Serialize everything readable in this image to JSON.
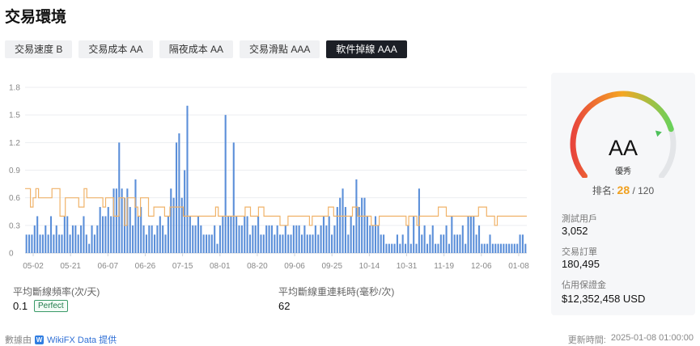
{
  "page": {
    "title": "交易環境"
  },
  "tabs": [
    {
      "label": "交易速度 B",
      "active": false
    },
    {
      "label": "交易成本 AA",
      "active": false
    },
    {
      "label": "隔夜成本 AA",
      "active": false
    },
    {
      "label": "交易滑點 AAA",
      "active": false
    },
    {
      "label": "軟件掉線 AAA",
      "active": true
    }
  ],
  "chart_data": {
    "type": "bar",
    "xlabel": "",
    "ylabel": "",
    "ylim": [
      0,
      1.8
    ],
    "yticks": [
      "0",
      "0.3",
      "0.6",
      "0.9",
      "1.2",
      "1.5",
      "1.8"
    ],
    "xticks": [
      "05-02",
      "05-21",
      "06-07",
      "06-26",
      "07-15",
      "08-01",
      "08-20",
      "09-06",
      "09-25",
      "10-14",
      "10-31",
      "11-19",
      "12-06",
      "01-08"
    ],
    "grid": true,
    "series": [
      {
        "type": "bar",
        "color": "#5b8fd9",
        "values": [
          0.2,
          0.2,
          0.2,
          0.3,
          0.4,
          0.2,
          0.2,
          0.3,
          0.2,
          0.4,
          0.2,
          0.3,
          0.2,
          0.2,
          0.4,
          0.4,
          0.2,
          0.3,
          0.3,
          0.2,
          0.3,
          0.4,
          0.2,
          0.1,
          0.3,
          0.2,
          0.3,
          0.5,
          0.4,
          0.4,
          0.5,
          0.4,
          0.7,
          0.7,
          1.2,
          0.7,
          0.6,
          0.7,
          0.5,
          0.3,
          0.8,
          0.4,
          0.5,
          0.3,
          0.2,
          0.3,
          0.3,
          0.2,
          0.3,
          0.4,
          0.3,
          0.2,
          0.4,
          0.7,
          0.6,
          1.2,
          1.3,
          0.6,
          0.9,
          1.6,
          0.4,
          0.3,
          0.3,
          0.4,
          0.3,
          0.2,
          0.2,
          0.2,
          0.2,
          0.3,
          0.1,
          0.3,
          0.4,
          1.5,
          0.4,
          0.4,
          1.2,
          0.4,
          0.3,
          0.3,
          0.4,
          0.4,
          0.2,
          0.3,
          0.3,
          0.4,
          0.2,
          0.2,
          0.3,
          0.3,
          0.3,
          0.2,
          0.3,
          0.2,
          0.2,
          0.3,
          0.2,
          0.2,
          0.3,
          0.3,
          0.3,
          0.2,
          0.3,
          0.2,
          0.2,
          0.2,
          0.3,
          0.2,
          0.3,
          0.4,
          0.3,
          0.4,
          0.2,
          0.3,
          0.5,
          0.6,
          0.7,
          0.5,
          0.2,
          0.4,
          0.3,
          0.8,
          0.5,
          0.6,
          0.6,
          0.4,
          0.3,
          0.3,
          0.4,
          0.3,
          0.2,
          0.2,
          0.1,
          0.1,
          0.1,
          0.1,
          0.2,
          0.1,
          0.2,
          0.1,
          0.3,
          0.1,
          0.4,
          0.1,
          0.7,
          0.2,
          0.3,
          0.1,
          0.2,
          0.3,
          0.1,
          0.1,
          0.2,
          0.2,
          0.3,
          0.1,
          0.4,
          0.2,
          0.2,
          0.2,
          0.3,
          0.1,
          0.4,
          0.4,
          0.4,
          0.2,
          0.3,
          0.1,
          0.1,
          0.1,
          0.2,
          0.1,
          0.1,
          0.1,
          0.1,
          0.1,
          0.1,
          0.1,
          0.1,
          0.1,
          0.1,
          0.2,
          0.2,
          0.1
        ]
      },
      {
        "type": "line",
        "color": "#f0b36a",
        "values": [
          0.7,
          0.7,
          0.5,
          0.6,
          0.7,
          0.6,
          0.6,
          0.6,
          0.6,
          0.6,
          0.7,
          0.7,
          0.7,
          0.4,
          0.4,
          0.6,
          0.6,
          0.6,
          0.6,
          0.6,
          0.5,
          0.5,
          0.7,
          0.6,
          0.6,
          0.6,
          0.6,
          0.6,
          0.6,
          0.5,
          0.6,
          0.6,
          0.6,
          0.4,
          0.4,
          0.6,
          0.6,
          0.3,
          0.6,
          0.6,
          0.6,
          0.5,
          0.4,
          0.6,
          0.6,
          0.6,
          0.4,
          0.4,
          0.5,
          0.5,
          0.5,
          0.5,
          0.4,
          0.4,
          0.5,
          0.5,
          0.5,
          0.5,
          0.5,
          0.4,
          0.4,
          0.4,
          0.4,
          0.4,
          0.4,
          0.4,
          0.4,
          0.4,
          0.4,
          0.4,
          0.4,
          0.5,
          0.4,
          0.4,
          0.4,
          0.4,
          0.4,
          0.4,
          0.4,
          0.4,
          0.4,
          0.4,
          0.5,
          0.5,
          0.4,
          0.4,
          0.4,
          0.5,
          0.5,
          0.4,
          0.4,
          0.4,
          0.4,
          0.4,
          0.4,
          0.3,
          0.3,
          0.3,
          0.4,
          0.4,
          0.4,
          0.4,
          0.4,
          0.4,
          0.4,
          0.4,
          0.3,
          0.4,
          0.4,
          0.4,
          0.4,
          0.4,
          0.4,
          0.5,
          0.5,
          0.4,
          0.4,
          0.4,
          0.4,
          0.4,
          0.4,
          0.4,
          0.5,
          0.5,
          0.4,
          0.4,
          0.4,
          0.4,
          0.4,
          0.3,
          0.3,
          0.3,
          0.4,
          0.4,
          0.4,
          0.4,
          0.4,
          0.4,
          0.4,
          0.4,
          0.4,
          0.4,
          0.3,
          0.4,
          0.4,
          0.4,
          0.3,
          0.4,
          0.4,
          0.4,
          0.4,
          0.4,
          0.4,
          0.4,
          0.5,
          0.5,
          0.5,
          0.4,
          0.4,
          0.4,
          0.4,
          0.4,
          0.4,
          0.4,
          0.4,
          0.4,
          0.4,
          0.4,
          0.4,
          0.5,
          0.5,
          0.5,
          0.4,
          0.4,
          0.4,
          0.3,
          0.4,
          0.4,
          0.4,
          0.4,
          0.4,
          0.4,
          0.4,
          0.4,
          0.4,
          0.4,
          0.4
        ]
      }
    ]
  },
  "metrics": {
    "freq": {
      "label": "平均斷線頻率(次/天)",
      "value": "0.1",
      "badge": "Perfect"
    },
    "reconnect": {
      "label": "平均斷線重連耗時(毫秒/次)",
      "value": "62"
    }
  },
  "panel": {
    "rating": "AA",
    "rating_sub": "優秀",
    "rank_label": "排名:",
    "rank_value": "28",
    "rank_total": "/ 120",
    "gauge_level": 0.78,
    "gauge_colors": [
      "#e8453c",
      "#f5a623",
      "#6ad15a"
    ],
    "stats": [
      {
        "label": "測試用戶",
        "value": "3,052"
      },
      {
        "label": "交易訂單",
        "value": "180,495"
      },
      {
        "label": "佔用保證金",
        "value": "$12,352,458 USD"
      }
    ]
  },
  "footer": {
    "source_prefix": "數據由",
    "source_brand": "WikiFX Data 提供",
    "updated_label": "更新時間:",
    "updated_value": "2025-01-08 01:00:00"
  }
}
